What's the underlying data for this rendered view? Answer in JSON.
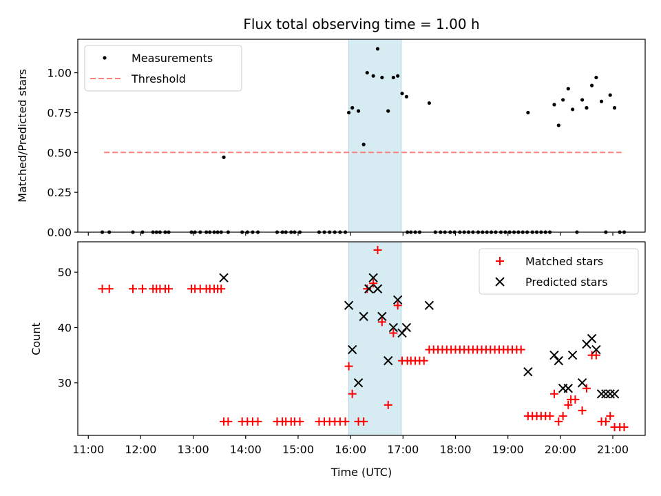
{
  "title": "Flux total observing time = 1.00 h",
  "xlabel": "Time (UTC)",
  "colors": {
    "measurement": "#000000",
    "threshold": "#ff7f7f",
    "matched": "#ff0000",
    "predicted": "#000000",
    "shade": "#add8e6"
  },
  "chart_data": [
    {
      "type": "scatter",
      "ylabel": "Matched/Predicted stars",
      "ylim": [
        0,
        1.21
      ],
      "yticks": [
        "0.00",
        "0.25",
        "0.50",
        "0.75",
        "1.00"
      ],
      "xlim": [
        "10:48",
        "21:37"
      ],
      "xticks": [
        "11:00",
        "12:00",
        "13:00",
        "14:00",
        "15:00",
        "16:00",
        "17:00",
        "18:00",
        "19:00",
        "20:00",
        "21:00"
      ],
      "legend_position": "top-left",
      "shaded_interval": [
        "15:58",
        "16:58"
      ],
      "series": [
        {
          "name": "Measurements",
          "points": [
            [
              "11:16",
              0
            ],
            [
              "11:24",
              0
            ],
            [
              "11:51",
              0
            ],
            [
              "12:02",
              0
            ],
            [
              "12:14",
              0
            ],
            [
              "12:18",
              0
            ],
            [
              "12:22",
              0
            ],
            [
              "12:28",
              0
            ],
            [
              "12:32",
              0
            ],
            [
              "12:58",
              0
            ],
            [
              "13:02",
              0
            ],
            [
              "13:08",
              0
            ],
            [
              "13:15",
              0
            ],
            [
              "13:19",
              0
            ],
            [
              "13:24",
              0
            ],
            [
              "13:28",
              0
            ],
            [
              "13:32",
              0
            ],
            [
              "13:35",
              0.47
            ],
            [
              "13:40",
              0
            ],
            [
              "13:56",
              0
            ],
            [
              "14:02",
              0
            ],
            [
              "14:08",
              0
            ],
            [
              "14:14",
              0
            ],
            [
              "14:36",
              0
            ],
            [
              "14:42",
              0
            ],
            [
              "14:46",
              0
            ],
            [
              "14:52",
              0
            ],
            [
              "14:56",
              0
            ],
            [
              "15:02",
              0
            ],
            [
              "15:24",
              0
            ],
            [
              "15:30",
              0
            ],
            [
              "15:36",
              0
            ],
            [
              "15:42",
              0
            ],
            [
              "15:48",
              0
            ],
            [
              "15:54",
              0
            ],
            [
              "15:58",
              0.75
            ],
            [
              "16:02",
              0.78
            ],
            [
              "16:09",
              0.76
            ],
            [
              "16:15",
              0.55
            ],
            [
              "16:19",
              1.0
            ],
            [
              "16:26",
              0.98
            ],
            [
              "16:31",
              1.15
            ],
            [
              "16:36",
              0.97
            ],
            [
              "16:43",
              0.76
            ],
            [
              "16:49",
              0.97
            ],
            [
              "16:54",
              0.98
            ],
            [
              "16:59",
              0.87
            ],
            [
              "17:04",
              0.85
            ],
            [
              "17:05",
              0
            ],
            [
              "17:09",
              0
            ],
            [
              "17:14",
              0
            ],
            [
              "17:19",
              0
            ],
            [
              "17:30",
              0.81
            ],
            [
              "17:37",
              0
            ],
            [
              "17:43",
              0
            ],
            [
              "17:48",
              0
            ],
            [
              "17:54",
              0
            ],
            [
              "17:59",
              0
            ],
            [
              "18:05",
              0
            ],
            [
              "18:10",
              0
            ],
            [
              "18:15",
              0
            ],
            [
              "18:20",
              0
            ],
            [
              "18:26",
              0
            ],
            [
              "18:31",
              0
            ],
            [
              "18:36",
              0
            ],
            [
              "18:41",
              0
            ],
            [
              "18:46",
              0
            ],
            [
              "18:52",
              0
            ],
            [
              "18:57",
              0
            ],
            [
              "19:02",
              0
            ],
            [
              "19:07",
              0
            ],
            [
              "19:12",
              0
            ],
            [
              "19:17",
              0
            ],
            [
              "19:22",
              0
            ],
            [
              "19:23",
              0.75
            ],
            [
              "19:28",
              0
            ],
            [
              "19:33",
              0
            ],
            [
              "19:38",
              0
            ],
            [
              "19:43",
              0
            ],
            [
              "19:48",
              0
            ],
            [
              "19:53",
              0.8
            ],
            [
              "19:58",
              0.67
            ],
            [
              "20:03",
              0.83
            ],
            [
              "20:09",
              0.9
            ],
            [
              "20:14",
              0.77
            ],
            [
              "20:19",
              0
            ],
            [
              "20:25",
              0.83
            ],
            [
              "20:30",
              0.78
            ],
            [
              "20:36",
              0.92
            ],
            [
              "20:41",
              0.97
            ],
            [
              "20:47",
              0.82
            ],
            [
              "20:52",
              0
            ],
            [
              "20:57",
              0.86
            ],
            [
              "21:02",
              0.78
            ],
            [
              "21:08",
              0
            ],
            [
              "21:13",
              0
            ]
          ]
        },
        {
          "name": "Threshold",
          "kind": "dashed-line",
          "y": 0.5,
          "x_start": "11:18",
          "x_end": "21:10"
        }
      ]
    },
    {
      "type": "scatter",
      "ylabel": "Count",
      "ylim": [
        20.5,
        55.5
      ],
      "yticks": [
        "30",
        "40",
        "50"
      ],
      "xlim": [
        "10:48",
        "21:37"
      ],
      "xticks": [
        "11:00",
        "12:00",
        "13:00",
        "14:00",
        "15:00",
        "16:00",
        "17:00",
        "18:00",
        "19:00",
        "20:00",
        "21:00"
      ],
      "legend_position": "top-right",
      "shaded_interval": [
        "15:58",
        "16:58"
      ],
      "series": [
        {
          "name": "Matched stars",
          "marker": "plus",
          "points": [
            [
              "11:16",
              47
            ],
            [
              "11:24",
              47
            ],
            [
              "11:51",
              47
            ],
            [
              "12:02",
              47
            ],
            [
              "12:14",
              47
            ],
            [
              "12:18",
              47
            ],
            [
              "12:22",
              47
            ],
            [
              "12:28",
              47
            ],
            [
              "12:32",
              47
            ],
            [
              "12:58",
              47
            ],
            [
              "13:02",
              47
            ],
            [
              "13:08",
              47
            ],
            [
              "13:15",
              47
            ],
            [
              "13:19",
              47
            ],
            [
              "13:24",
              47
            ],
            [
              "13:28",
              47
            ],
            [
              "13:32",
              47
            ],
            [
              "13:35",
              23
            ],
            [
              "13:40",
              23
            ],
            [
              "13:56",
              23
            ],
            [
              "14:02",
              23
            ],
            [
              "14:08",
              23
            ],
            [
              "14:14",
              23
            ],
            [
              "14:36",
              23
            ],
            [
              "14:42",
              23
            ],
            [
              "14:46",
              23
            ],
            [
              "14:52",
              23
            ],
            [
              "14:56",
              23
            ],
            [
              "15:02",
              23
            ],
            [
              "15:24",
              23
            ],
            [
              "15:30",
              23
            ],
            [
              "15:36",
              23
            ],
            [
              "15:42",
              23
            ],
            [
              "15:48",
              23
            ],
            [
              "15:54",
              23
            ],
            [
              "15:58",
              33
            ],
            [
              "16:02",
              28
            ],
            [
              "16:09",
              23
            ],
            [
              "16:15",
              23
            ],
            [
              "16:19",
              47
            ],
            [
              "16:26",
              48
            ],
            [
              "16:31",
              54
            ],
            [
              "16:36",
              41
            ],
            [
              "16:43",
              26
            ],
            [
              "16:49",
              39
            ],
            [
              "16:54",
              44
            ],
            [
              "16:59",
              34
            ],
            [
              "17:05",
              34
            ],
            [
              "17:09",
              34
            ],
            [
              "17:14",
              34
            ],
            [
              "17:19",
              34
            ],
            [
              "17:24",
              34
            ],
            [
              "17:30",
              36
            ],
            [
              "17:35",
              36
            ],
            [
              "17:40",
              36
            ],
            [
              "17:45",
              36
            ],
            [
              "17:50",
              36
            ],
            [
              "17:55",
              36
            ],
            [
              "18:00",
              36
            ],
            [
              "18:05",
              36
            ],
            [
              "18:10",
              36
            ],
            [
              "18:15",
              36
            ],
            [
              "18:20",
              36
            ],
            [
              "18:25",
              36
            ],
            [
              "18:30",
              36
            ],
            [
              "18:35",
              36
            ],
            [
              "18:40",
              36
            ],
            [
              "18:45",
              36
            ],
            [
              "18:50",
              36
            ],
            [
              "18:55",
              36
            ],
            [
              "19:00",
              36
            ],
            [
              "19:05",
              36
            ],
            [
              "19:10",
              36
            ],
            [
              "19:15",
              36
            ],
            [
              "19:23",
              24
            ],
            [
              "19:28",
              24
            ],
            [
              "19:33",
              24
            ],
            [
              "19:38",
              24
            ],
            [
              "19:43",
              24
            ],
            [
              "19:48",
              24
            ],
            [
              "19:53",
              28
            ],
            [
              "19:58",
              23
            ],
            [
              "20:03",
              24
            ],
            [
              "20:09",
              26
            ],
            [
              "20:12",
              27
            ],
            [
              "20:17",
              27
            ],
            [
              "20:25",
              25
            ],
            [
              "20:30",
              29
            ],
            [
              "20:36",
              35
            ],
            [
              "20:41",
              35
            ],
            [
              "20:47",
              23
            ],
            [
              "20:52",
              23
            ],
            [
              "20:57",
              24
            ],
            [
              "21:02",
              22
            ],
            [
              "21:08",
              22
            ],
            [
              "21:13",
              22
            ]
          ]
        },
        {
          "name": "Predicted stars",
          "marker": "x",
          "points": [
            [
              "13:35",
              49
            ],
            [
              "15:58",
              44
            ],
            [
              "16:02",
              36
            ],
            [
              "16:09",
              30
            ],
            [
              "16:15",
              42
            ],
            [
              "16:21",
              47
            ],
            [
              "16:26",
              49
            ],
            [
              "16:31",
              47
            ],
            [
              "16:36",
              42
            ],
            [
              "16:43",
              34
            ],
            [
              "16:49",
              40
            ],
            [
              "16:54",
              45
            ],
            [
              "16:59",
              39
            ],
            [
              "17:04",
              40
            ],
            [
              "17:30",
              44
            ],
            [
              "19:23",
              32
            ],
            [
              "19:53",
              35
            ],
            [
              "19:58",
              34
            ],
            [
              "20:03",
              29
            ],
            [
              "20:09",
              29
            ],
            [
              "20:14",
              35
            ],
            [
              "20:25",
              30
            ],
            [
              "20:30",
              37
            ],
            [
              "20:36",
              38
            ],
            [
              "20:41",
              36
            ],
            [
              "20:47",
              28
            ],
            [
              "20:52",
              28
            ],
            [
              "20:57",
              28
            ],
            [
              "21:02",
              28
            ]
          ]
        }
      ]
    }
  ]
}
